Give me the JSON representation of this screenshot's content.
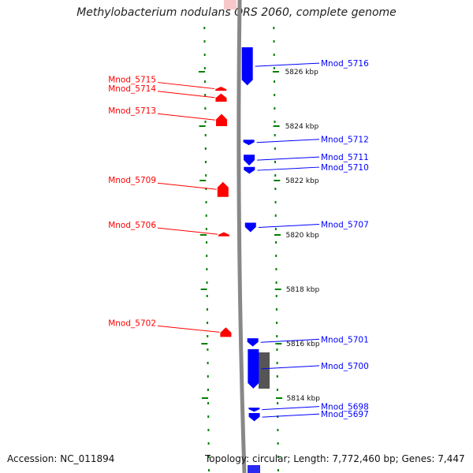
{
  "title": "Methylobacterium nodulans ORS 2060, complete genome",
  "accession_label": "Accession: NC_011894",
  "topology_label": "Topology: circular; Length: 7,772,460 bp; Genes: 7,447",
  "colors": {
    "forward_gene": "#ff0000",
    "reverse_gene": "#0000ff",
    "other_feature": "#555555",
    "ruler_ticks": "#008000",
    "backbone": "#888888"
  },
  "ruler": {
    "unit": "kbp",
    "labels": [
      {
        "kbp": 5826,
        "text": "5826 kbp"
      },
      {
        "kbp": 5824,
        "text": "5824 kbp"
      },
      {
        "kbp": 5822,
        "text": "5822 kbp"
      },
      {
        "kbp": 5820,
        "text": "5820 kbp"
      },
      {
        "kbp": 5818,
        "text": "5818 kbp"
      },
      {
        "kbp": 5816,
        "text": "5816 kbp"
      },
      {
        "kbp": 5814,
        "text": "5814 kbp"
      }
    ]
  },
  "genes": [
    {
      "name": "Mnod_5716",
      "strand": "-",
      "start_kbp": 5825.5,
      "end_kbp": 5826.9
    },
    {
      "name": "Mnod_5715",
      "strand": "+",
      "start_kbp": 5825.3,
      "end_kbp": 5825.45
    },
    {
      "name": "Mnod_5714",
      "strand": "+",
      "start_kbp": 5824.9,
      "end_kbp": 5825.2
    },
    {
      "name": "Mnod_5713",
      "strand": "+",
      "start_kbp": 5824.0,
      "end_kbp": 5824.45
    },
    {
      "name": "Mnod_5712",
      "strand": "-",
      "start_kbp": 5823.3,
      "end_kbp": 5823.5
    },
    {
      "name": "Mnod_5711",
      "strand": "-",
      "start_kbp": 5822.55,
      "end_kbp": 5822.95
    },
    {
      "name": "Mnod_5710",
      "strand": "-",
      "start_kbp": 5822.25,
      "end_kbp": 5822.5
    },
    {
      "name": "Mnod_5709",
      "strand": "+",
      "start_kbp": 5821.4,
      "end_kbp": 5821.95
    },
    {
      "name": "Mnod_5707",
      "strand": "-",
      "start_kbp": 5820.1,
      "end_kbp": 5820.45
    },
    {
      "name": "Mnod_5706",
      "strand": "+",
      "start_kbp": 5819.95,
      "end_kbp": 5820.1
    },
    {
      "name": "Mnod_5702",
      "strand": "+",
      "start_kbp": 5816.25,
      "end_kbp": 5816.6
    },
    {
      "name": "Mnod_5701",
      "strand": "-",
      "start_kbp": 5815.9,
      "end_kbp": 5816.2
    },
    {
      "name": "Mnod_5700",
      "strand": "-",
      "start_kbp": 5814.35,
      "end_kbp": 5815.8
    },
    {
      "name": "Mnod_5698",
      "strand": "-",
      "start_kbp": 5813.5,
      "end_kbp": 5813.65
    },
    {
      "name": "Mnod_5697",
      "strand": "-",
      "start_kbp": 5813.15,
      "end_kbp": 5813.45
    }
  ]
}
